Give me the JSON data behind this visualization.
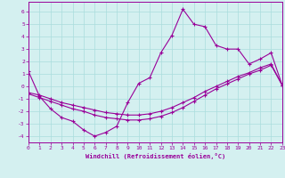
{
  "xlabel": "Windchill (Refroidissement éolien,°C)",
  "xlim": [
    0,
    23
  ],
  "ylim": [
    -4.5,
    6.8
  ],
  "xticks": [
    0,
    1,
    2,
    3,
    4,
    5,
    6,
    7,
    8,
    9,
    10,
    11,
    12,
    13,
    14,
    15,
    16,
    17,
    18,
    19,
    20,
    21,
    22,
    23
  ],
  "yticks": [
    -4,
    -3,
    -2,
    -1,
    0,
    1,
    2,
    3,
    4,
    5,
    6
  ],
  "bg_color": "#d4f0f0",
  "line_color": "#990099",
  "grid_color": "#aadddd",
  "line1_x": [
    0,
    1,
    2,
    3,
    4,
    5,
    6,
    7,
    8,
    9,
    10,
    11,
    12,
    13,
    14,
    15,
    16,
    17,
    18,
    19,
    20,
    21,
    22,
    23
  ],
  "line1_y": [
    1.2,
    -0.8,
    -1.8,
    -2.5,
    -2.8,
    -3.5,
    -4.0,
    -3.7,
    -3.2,
    -1.3,
    0.25,
    0.7,
    2.7,
    4.1,
    6.2,
    5.0,
    4.8,
    3.3,
    3.0,
    3.0,
    1.8,
    2.2,
    2.7,
    0.1
  ],
  "line2_x": [
    0,
    1,
    2,
    3,
    4,
    5,
    6,
    7,
    8,
    9,
    10,
    11,
    12,
    13,
    14,
    15,
    16,
    17,
    18,
    19,
    20,
    21,
    22,
    23
  ],
  "line2_y": [
    -0.5,
    -0.7,
    -1.0,
    -1.3,
    -1.5,
    -1.7,
    -1.9,
    -2.1,
    -2.2,
    -2.3,
    -2.3,
    -2.2,
    -2.0,
    -1.7,
    -1.3,
    -0.9,
    -0.4,
    0.0,
    0.4,
    0.8,
    1.1,
    1.5,
    1.8,
    0.1
  ],
  "line3_x": [
    0,
    1,
    2,
    3,
    4,
    5,
    6,
    7,
    8,
    9,
    10,
    11,
    12,
    13,
    14,
    15,
    16,
    17,
    18,
    19,
    20,
    21,
    22,
    23
  ],
  "line3_y": [
    -0.6,
    -0.9,
    -1.2,
    -1.5,
    -1.8,
    -2.0,
    -2.3,
    -2.5,
    -2.6,
    -2.7,
    -2.7,
    -2.6,
    -2.4,
    -2.1,
    -1.7,
    -1.2,
    -0.7,
    -0.2,
    0.2,
    0.6,
    1.0,
    1.3,
    1.7,
    0.1
  ]
}
